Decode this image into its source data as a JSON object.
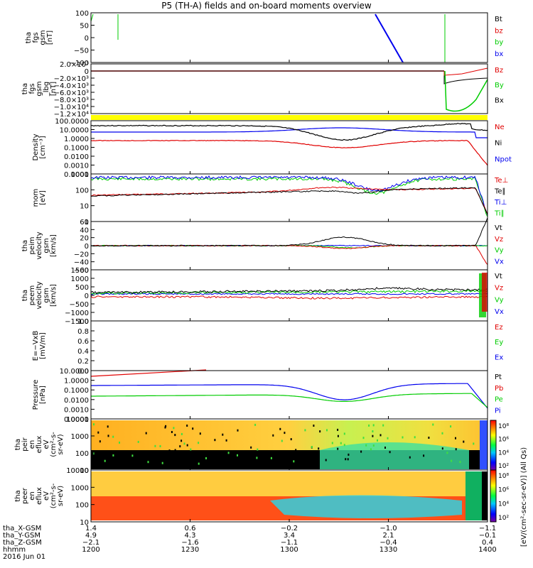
{
  "title": "P5 (TH-A) fields and on-board moments overview",
  "colors": {
    "black": "#000000",
    "red": "#e00000",
    "green": "#00cc00",
    "blue": "#0000ee",
    "yellow": "#ffff00"
  },
  "chart_data": [
    {
      "type": "line",
      "ylabel": [
        "tha",
        "fgs",
        "gsm",
        "[nT]"
      ],
      "yticks": [
        "100",
        "50",
        "0",
        "−50",
        "−100"
      ],
      "legend": [
        {
          "text": "Bt",
          "color": "black"
        },
        {
          "text": "bz",
          "color": "red"
        },
        {
          "text": "by",
          "color": "green"
        },
        {
          "text": "bx",
          "color": "blue"
        }
      ]
    },
    {
      "type": "line",
      "ylabel": [
        "tha",
        "fgs",
        "gsm",
        "_lbg",
        "[nT]"
      ],
      "yticks": [
        "2.0×10³",
        "0",
        "−2.0×10³",
        "−4.0×10³",
        "−6.0×10³",
        "−8.0×10³",
        "−1.0×10⁴",
        "−1.2×10⁴"
      ],
      "legend": [
        {
          "text": "Bz",
          "color": "red"
        },
        {
          "text": "By",
          "color": "green"
        },
        {
          "text": "Bx",
          "color": "black"
        }
      ]
    },
    {
      "type": "line",
      "ylabel": [
        "Density",
        "[cm⁻³]"
      ],
      "yticks": [
        "100.0000",
        "10.0000",
        "1.0000",
        "0.1000",
        "0.0100",
        "0.0010",
        "0.0001"
      ],
      "legend": [
        {
          "text": "Ne",
          "color": "red"
        },
        {
          "text": "Ni",
          "color": "black"
        },
        {
          "text": "Npot",
          "color": "blue"
        }
      ]
    },
    {
      "type": "line",
      "ylabel": [
        "mom",
        "[eV]"
      ],
      "yticks": [
        "1000",
        "100",
        "10",
        "1"
      ],
      "legend": [
        {
          "text": "Te⊥",
          "color": "red"
        },
        {
          "text": "Te∥",
          "color": "black"
        },
        {
          "text": "Ti⊥",
          "color": "blue"
        },
        {
          "text": "Ti∥",
          "color": "green"
        }
      ]
    },
    {
      "type": "line",
      "ylabel": [
        "tha",
        "peim",
        "velocity",
        "gsm",
        "[km/s]"
      ],
      "yticks": [
        "60",
        "40",
        "20",
        "0",
        "−20",
        "−40",
        "−60"
      ],
      "legend": [
        {
          "text": "Vt",
          "color": "black"
        },
        {
          "text": "Vz",
          "color": "red"
        },
        {
          "text": "Vy",
          "color": "green"
        },
        {
          "text": "Vx",
          "color": "blue"
        }
      ]
    },
    {
      "type": "line",
      "ylabel": [
        "tha",
        "peem",
        "velocity",
        "gsm",
        "[km/s]"
      ],
      "yticks": [
        "1500",
        "1000",
        "500",
        "0",
        "−500",
        "−1000",
        "−1500"
      ],
      "legend": [
        {
          "text": "Vt",
          "color": "black"
        },
        {
          "text": "Vz",
          "color": "red"
        },
        {
          "text": "Vy",
          "color": "green"
        },
        {
          "text": "Vx",
          "color": "blue"
        }
      ]
    },
    {
      "type": "line",
      "ylabel": [
        "E=−VxB",
        "[mV/m]"
      ],
      "yticks": [
        "1.0",
        "0.8",
        "0.6",
        "0.4",
        "0.2",
        "0.0"
      ],
      "legend": [
        {
          "text": "Ez",
          "color": "red"
        },
        {
          "text": "Ey",
          "color": "green"
        },
        {
          "text": "Ex",
          "color": "blue"
        }
      ]
    },
    {
      "type": "line",
      "ylabel": [
        "Pressure",
        "[nPa]"
      ],
      "yticks": [
        "10.0000",
        "1.0000",
        "0.1000",
        "0.0100",
        "0.0010",
        "0.0001"
      ],
      "legend": [
        {
          "text": "Pt",
          "color": "black"
        },
        {
          "text": "Pb",
          "color": "red"
        },
        {
          "text": "Pe",
          "color": "green"
        },
        {
          "text": "Pi",
          "color": "blue"
        }
      ]
    },
    {
      "type": "heatmap",
      "ylabel": [
        "tha",
        "peir",
        "en",
        "eflux",
        "eV",
        "(cm²-s-",
        "sr-eV)"
      ],
      "yticks": [
        "10000",
        "1000",
        "100",
        "10"
      ],
      "colorbar": [
        "10⁸",
        "10⁶",
        "10⁴",
        "10²"
      ]
    },
    {
      "type": "heatmap",
      "ylabel": [
        "tha",
        "peer",
        "en",
        "eflux",
        "eV",
        "(cm²-s-",
        "sr-eV)"
      ],
      "yticks": [
        "10000",
        "1000",
        "100",
        "10"
      ],
      "colorbar": [
        "10⁸",
        "10⁶",
        "10⁴",
        "10²"
      ],
      "colorbar_label": "[eV/(cm²-sec-sr-eV)] (All Qs)"
    }
  ],
  "xaxis": {
    "rows": [
      {
        "label": "tha_X-GSM",
        "values": [
          "1.4",
          "0.6",
          "−0.2",
          "−1.0",
          "−1.1"
        ]
      },
      {
        "label": "tha_Y-GSM",
        "values": [
          "4.9",
          "4.3",
          "3.4",
          "2.1",
          "−0.1"
        ]
      },
      {
        "label": "tha_Z-GSM",
        "values": [
          "−2.1",
          "−1.6",
          "−1.1",
          "−0.4",
          "0.4"
        ]
      },
      {
        "label": "hhmm",
        "values": [
          "1200",
          "1230",
          "1300",
          "1330",
          "1400"
        ]
      }
    ],
    "date": "2016 Jun 01"
  }
}
